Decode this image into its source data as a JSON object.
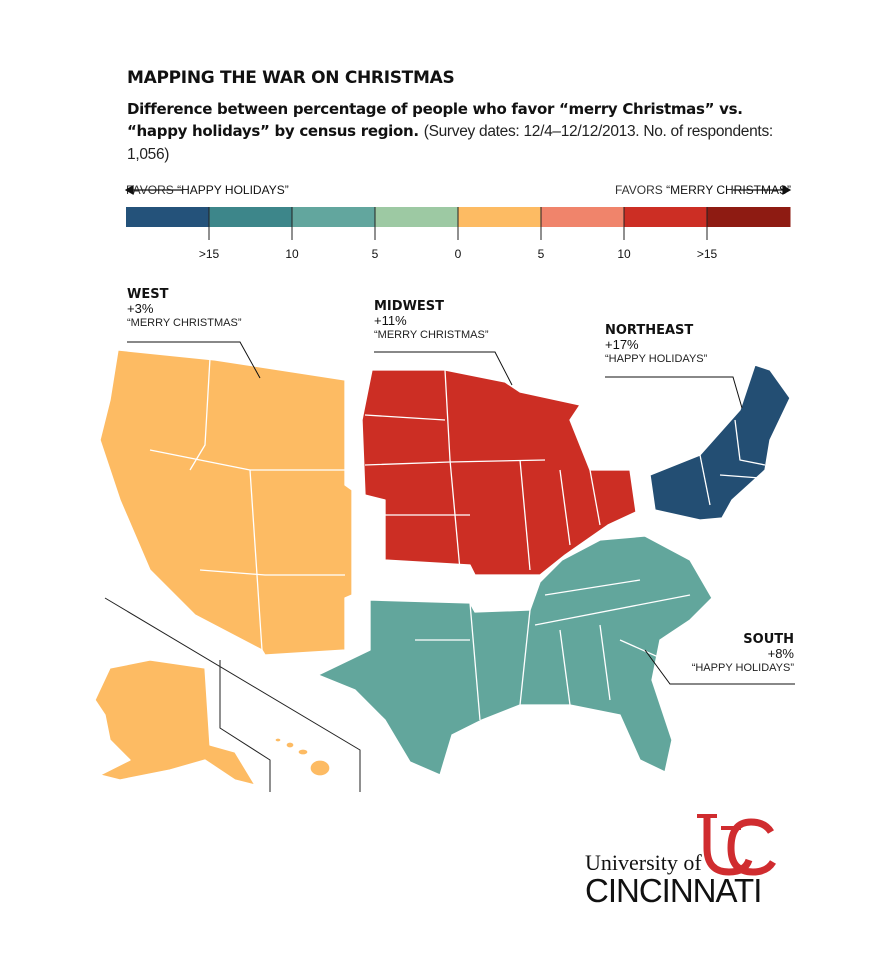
{
  "title": "MAPPING THE WAR ON CHRISTMAS",
  "subtitle_bold": "Difference between percentage of people who favor “merry Christmas” vs. “happy holidays” by census region.",
  "subtitle_note": "(Survey dates: 12/4–12/12/2013. No. of respondents: 1,056)",
  "legend": {
    "left_prefix": "FAVORS ",
    "left_label": "“HAPPY HOLIDAYS”",
    "right_prefix": "FAVORS ",
    "right_label": "“MERRY CHRISTMAS”",
    "colors": [
      "#24527a",
      "#3d868a",
      "#62a69e",
      "#9dc9a3",
      "#fdbb63",
      "#f0846b",
      "#cc2e24",
      "#8e1b12"
    ],
    "ticks": [
      ">15",
      "10",
      "5",
      "0",
      "5",
      "10",
      ">15"
    ]
  },
  "regions": [
    {
      "name": "WEST",
      "value": "+3%",
      "favors": "“MERRY CHRISTMAS”",
      "color": "#fdbb63"
    },
    {
      "name": "MIDWEST",
      "value": "+11%",
      "favors": "“MERRY CHRISTMAS”",
      "color": "#cc2e24"
    },
    {
      "name": "NORTHEAST",
      "value": "+17%",
      "favors": "“HAPPY HOLIDAYS”",
      "color": "#234e73"
    },
    {
      "name": "SOUTH",
      "value": "+8%",
      "favors": "“HAPPY HOLIDAYS”",
      "color": "#62a69c"
    }
  ],
  "logo": {
    "line1": "University of",
    "line2": "CINCINNATI",
    "mark": "UC",
    "color": "#d02c2f"
  }
}
